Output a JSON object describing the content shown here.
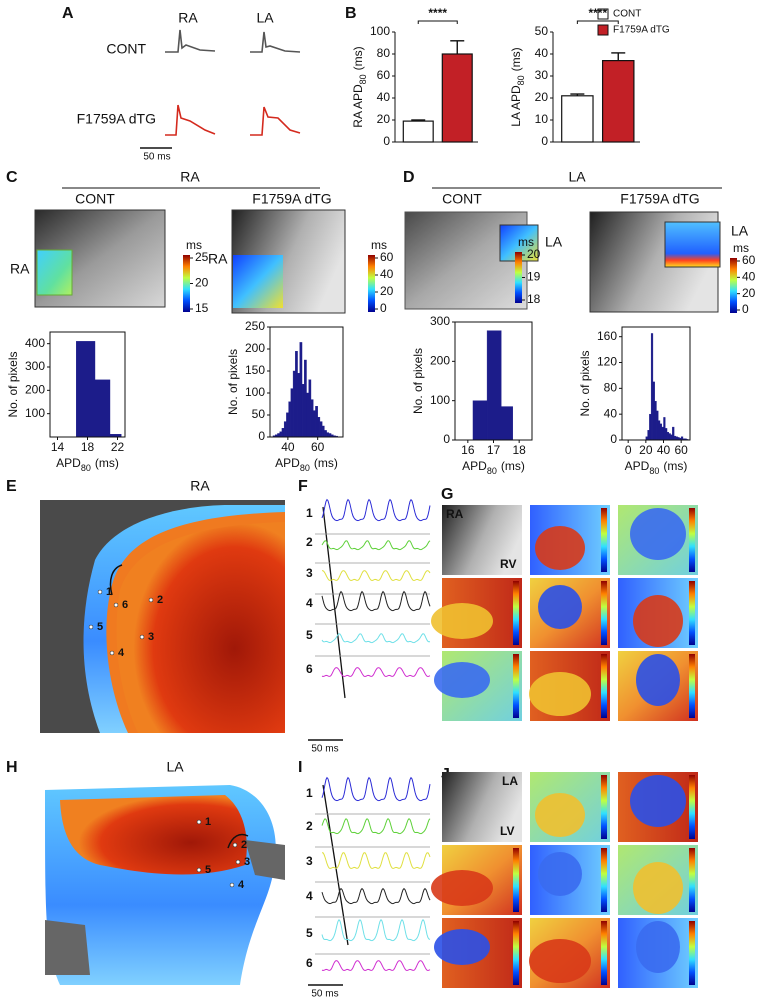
{
  "panel_labels": [
    "A",
    "B",
    "C",
    "D",
    "E",
    "F",
    "G",
    "H",
    "I",
    "J"
  ],
  "panel_a": {
    "columns": [
      "RA",
      "LA"
    ],
    "rows": [
      "CONT",
      "F1759A dTG"
    ],
    "scale_bar": "50 ms"
  },
  "legend": [
    {
      "name": "CONT",
      "color": "#ffffff"
    },
    {
      "name": "F1759A dTG",
      "color": "#c22026"
    }
  ],
  "chart_data": [
    {
      "type": "bar",
      "ylabel": "RA APD",
      "ylabel_sub": "80",
      "ylabel_unit": "(ms)",
      "values": [
        19,
        80
      ],
      "errors": [
        1,
        12
      ],
      "ylim": [
        0,
        100
      ],
      "yticks": [
        0,
        20,
        40,
        60,
        80,
        100
      ],
      "significance": "****"
    },
    {
      "type": "bar",
      "ylabel": "LA APD",
      "ylabel_sub": "80",
      "ylabel_unit": "(ms)",
      "values": [
        21,
        37
      ],
      "errors": [
        0.8,
        3.5
      ],
      "ylim": [
        0,
        50
      ],
      "yticks": [
        0,
        10,
        20,
        30,
        40,
        50
      ],
      "significance": "****"
    },
    {
      "type": "histogram",
      "ylabel": "No. of pixels",
      "xlabel": "APD",
      "xlabel_sub": "80",
      "xlabel_unit": "(ms)",
      "color": "#1c1c8a",
      "bins": [
        16.5,
        19,
        21,
        22.5
      ],
      "counts": [
        410,
        245,
        12
      ],
      "xlim": [
        13,
        23
      ],
      "xticks": [
        14,
        18,
        22
      ],
      "ylim": [
        0,
        450
      ],
      "yticks": [
        100,
        200,
        300,
        400
      ]
    },
    {
      "type": "histogram",
      "ylabel": "No. of pixels",
      "xlabel": "APD",
      "xlabel_sub": "80",
      "xlabel_unit": "(ms)",
      "color": "#1c1c8a",
      "bins": [
        30,
        31.5,
        33,
        34.5,
        36,
        37.5,
        39,
        40.5,
        42,
        43.5,
        45,
        46.5,
        48,
        49.5,
        51,
        52.5,
        54,
        55.5,
        57,
        58.5,
        60,
        61.5,
        63,
        64.5,
        66,
        67.5,
        69,
        70.5,
        72,
        73.5
      ],
      "counts": [
        3,
        5,
        8,
        12,
        20,
        35,
        55,
        80,
        110,
        150,
        195,
        145,
        215,
        120,
        175,
        100,
        130,
        85,
        60,
        70,
        45,
        35,
        25,
        15,
        10,
        8,
        5,
        3,
        2
      ],
      "xlim": [
        28,
        77
      ],
      "xticks": [
        40,
        60
      ],
      "ylim": [
        0,
        250
      ],
      "yticks": [
        0,
        50,
        100,
        150,
        200,
        250
      ]
    },
    {
      "type": "histogram",
      "ylabel": "No. of pixels",
      "xlabel": "APD",
      "xlabel_sub": "80",
      "xlabel_unit": "(ms)",
      "color": "#1c1c8a",
      "bins": [
        16.2,
        16.75,
        17.3,
        17.75
      ],
      "counts": [
        100,
        278,
        85
      ],
      "xlim": [
        15.5,
        18.5
      ],
      "xticks": [
        16,
        17,
        18
      ],
      "ylim": [
        0,
        300
      ],
      "yticks": [
        0,
        100,
        200,
        300
      ]
    },
    {
      "type": "histogram",
      "ylabel": "No. of pixels",
      "xlabel": "APD",
      "xlabel_sub": "80",
      "xlabel_unit": "(ms)",
      "color": "#1c1c8a",
      "bins": [
        20,
        22,
        24,
        26,
        28,
        30,
        32,
        34,
        36,
        38,
        40,
        42,
        44,
        46,
        48,
        50,
        52,
        54,
        56,
        58,
        60,
        62,
        64,
        66,
        68
      ],
      "counts": [
        5,
        15,
        40,
        165,
        90,
        60,
        45,
        30,
        25,
        20,
        35,
        18,
        12,
        10,
        8,
        20,
        6,
        5,
        4,
        3,
        5,
        2,
        2,
        1
      ],
      "xlim": [
        -7,
        70
      ],
      "xticks": [
        0,
        20,
        40,
        60
      ],
      "ylim": [
        0,
        175
      ],
      "yticks": [
        0,
        40,
        80,
        120,
        160
      ]
    }
  ],
  "panel_c": {
    "header": "RA",
    "conditions": [
      "CONT",
      "F1759A dTG"
    ],
    "site_labels": [
      "RA",
      "RA"
    ],
    "colorbars": [
      {
        "unit": "ms",
        "ticks": [
          15,
          20,
          25
        ]
      },
      {
        "unit": "ms",
        "ticks": [
          0,
          20,
          40,
          60
        ]
      }
    ]
  },
  "panel_d": {
    "header": "LA",
    "conditions": [
      "CONT",
      "F1759A dTG"
    ],
    "site_labels": [
      "LA",
      "LA"
    ],
    "colorbars": [
      {
        "unit": "ms",
        "ticks": [
          18,
          19,
          20
        ]
      },
      {
        "unit": "ms",
        "ticks": [
          0,
          20,
          40,
          60
        ]
      }
    ]
  },
  "panel_e": {
    "title": "RA",
    "sites": [
      "1",
      "2",
      "3",
      "4",
      "5",
      "6"
    ]
  },
  "panel_f": {
    "traces": [
      "1",
      "2",
      "3",
      "4",
      "5",
      "6"
    ],
    "scale_bar": "50 ms"
  },
  "panel_g": {
    "labels": [
      "RA",
      "RV"
    ]
  },
  "panel_h": {
    "title": "LA",
    "sites": [
      "1",
      "2",
      "3",
      "4",
      "5"
    ]
  },
  "panel_i": {
    "traces": [
      "1",
      "2",
      "3",
      "4",
      "5",
      "6"
    ],
    "scale_bar": "50 ms"
  },
  "panel_j": {
    "labels": [
      "LA",
      "LV"
    ]
  }
}
